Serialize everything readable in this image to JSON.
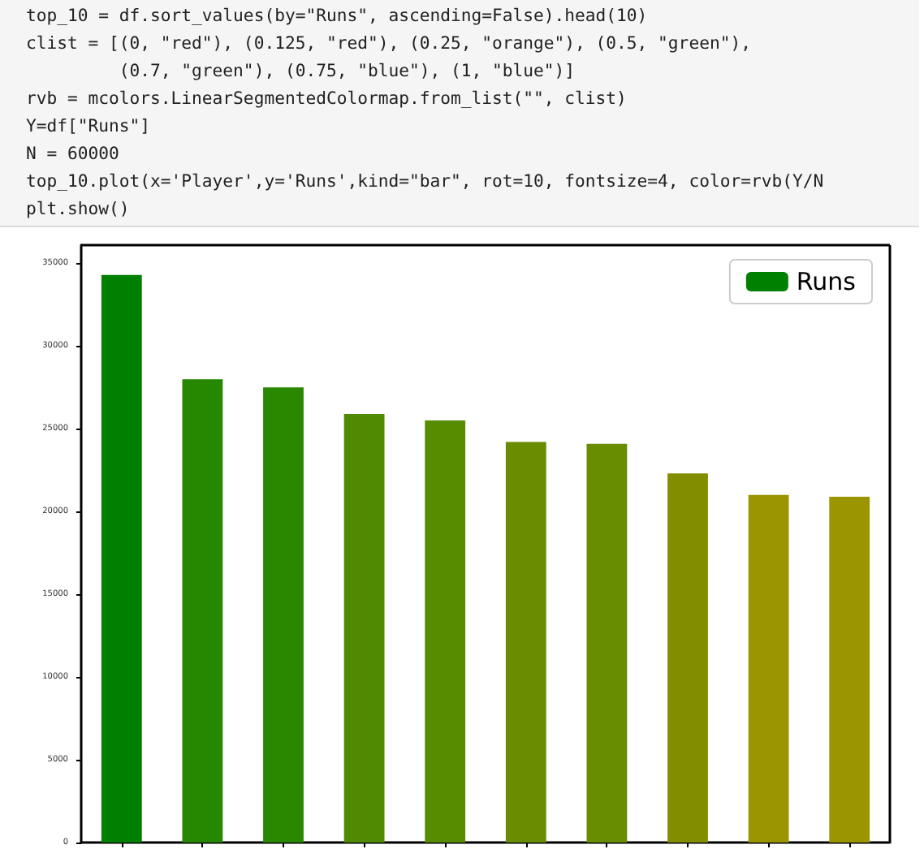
{
  "chart_data": {
    "type": "bar",
    "annotations": [
      "top_10 = df.sort_values(by=\"Runs\", ascending=False).head(10)",
      "clist = [(0, \"red\"), (0.125, \"red\"), (0.25, \"orange\"), (0.5, \"green\"),",
      "         (0.7, \"green\"), (0.75, \"blue\"), (1, \"blue\")]",
      "rvb = mcolors.LinearSegmentedColormap.from_list(\"\", clist)",
      "Y=df[\"Runs\"]",
      "N = 60000",
      "top_10.plot(x='Player',y='Runs',kind=\"bar\", rot=10, fontsize=4, color=rvb(Y/N",
      "plt.show()"
    ],
    "categories": [
      null,
      null,
      null,
      null,
      null,
      null,
      null,
      null,
      null,
      null
    ],
    "series": [
      {
        "name": "Runs",
        "color": "#008000",
        "colors": [
          "#007f00",
          "#258800",
          "#2a8700",
          "#4f8a00",
          "#578c00",
          "#6a8c00",
          "#688d00",
          "#828d00",
          "#9a9500",
          "#9a9500"
        ],
        "values": [
          34300,
          28000,
          27500,
          25900,
          25500,
          24200,
          24100,
          22300,
          21000,
          20900
        ]
      }
    ],
    "ylim": [
      0,
      36100
    ],
    "yticks": [
      0,
      5000,
      10000,
      15000,
      20000,
      25000,
      30000,
      35000
    ],
    "grid": false,
    "legend": "top right",
    "tick_labels": "y"
  }
}
